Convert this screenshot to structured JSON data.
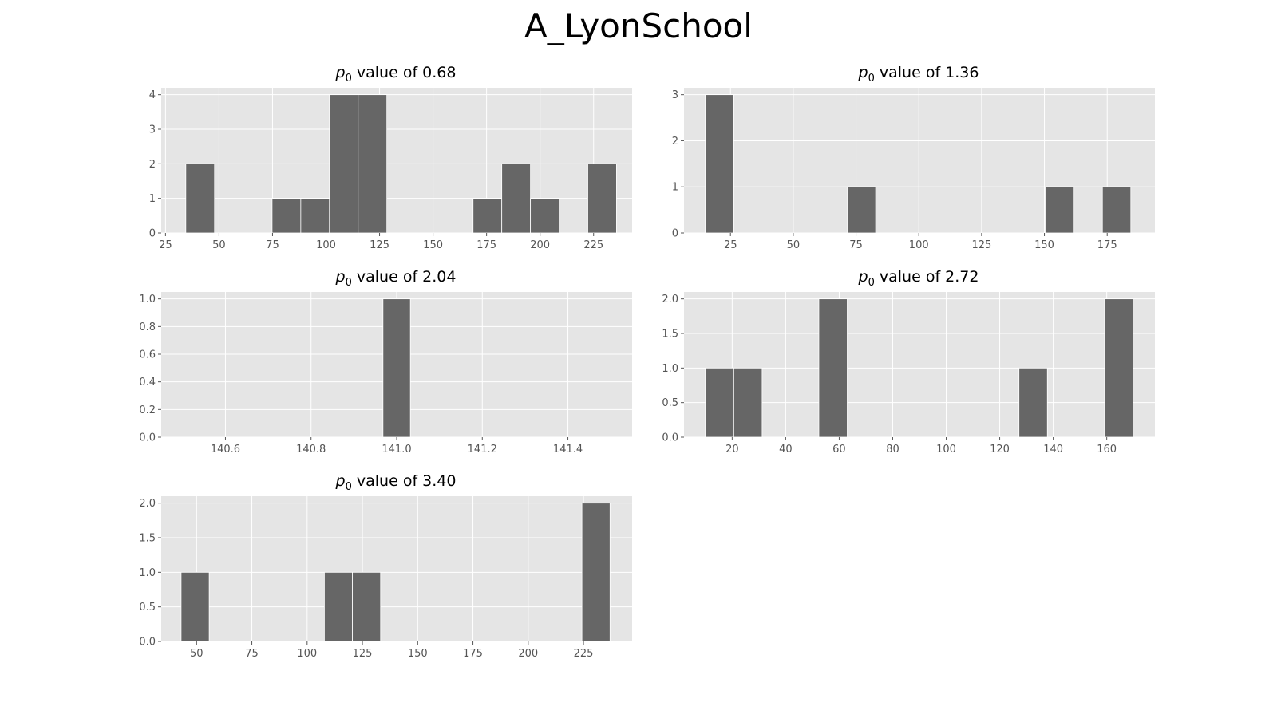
{
  "figure": {
    "title": "A_LyonSchool"
  },
  "colors": {
    "background": "#E5E5E5",
    "bar": "#666666",
    "grid": "#FFFFFF",
    "tick": "#555555"
  },
  "chart_data": [
    {
      "type": "bar",
      "title_prefix": "p",
      "title_sub": "0",
      "title_suffix": " value of 0.68",
      "xlim": [
        23,
        243
      ],
      "ylim": [
        0,
        4.2
      ],
      "xticks": [
        25,
        50,
        75,
        100,
        125,
        150,
        175,
        200,
        225
      ],
      "xtick_labels": [
        "25",
        "50",
        "75",
        "100",
        "125",
        "150",
        "175",
        "200",
        "225"
      ],
      "yticks": [
        0,
        1,
        2,
        3,
        4
      ],
      "ytick_labels": [
        "0",
        "1",
        "2",
        "3",
        "4"
      ],
      "bins": [
        {
          "x0": 34.5,
          "x1": 47.9,
          "count": 2
        },
        {
          "x0": 74.8,
          "x1": 88.2,
          "count": 1
        },
        {
          "x0": 88.2,
          "x1": 101.6,
          "count": 1
        },
        {
          "x0": 101.6,
          "x1": 115.0,
          "count": 4
        },
        {
          "x0": 115.0,
          "x1": 128.4,
          "count": 4
        },
        {
          "x0": 168.7,
          "x1": 182.1,
          "count": 1
        },
        {
          "x0": 182.1,
          "x1": 195.5,
          "count": 2
        },
        {
          "x0": 195.5,
          "x1": 208.9,
          "count": 1
        },
        {
          "x0": 222.3,
          "x1": 235.7,
          "count": 2
        }
      ]
    },
    {
      "type": "bar",
      "title_prefix": "p",
      "title_sub": "0",
      "title_suffix": " value of 1.36",
      "xlim": [
        6.5,
        194
      ],
      "ylim": [
        0,
        3.15
      ],
      "xticks": [
        25,
        50,
        75,
        100,
        125,
        150,
        175
      ],
      "xtick_labels": [
        "25",
        "50",
        "75",
        "100",
        "125",
        "150",
        "175"
      ],
      "yticks": [
        0,
        1,
        2,
        3
      ],
      "ytick_labels": [
        "0",
        "1",
        "2",
        "3"
      ],
      "bins": [
        {
          "x0": 15.0,
          "x1": 26.3,
          "count": 3
        },
        {
          "x0": 71.5,
          "x1": 82.8,
          "count": 1
        },
        {
          "x0": 150.5,
          "x1": 161.8,
          "count": 1
        },
        {
          "x0": 173.1,
          "x1": 184.4,
          "count": 1
        }
      ]
    },
    {
      "type": "bar",
      "title_prefix": "p",
      "title_sub": "0",
      "title_suffix": " value of 2.04",
      "xlim": [
        140.45,
        141.55
      ],
      "ylim": [
        0,
        1.05
      ],
      "xticks": [
        140.6,
        140.8,
        141.0,
        141.2,
        141.4
      ],
      "xtick_labels": [
        "140.6",
        "140.8",
        "141.0",
        "141.2",
        "141.4"
      ],
      "yticks": [
        0,
        0.2,
        0.4,
        0.6,
        0.8,
        1.0
      ],
      "ytick_labels": [
        "0.0",
        "0.2",
        "0.4",
        "0.6",
        "0.8",
        "1.0"
      ],
      "bins": [
        {
          "x0": 140.968,
          "x1": 141.032,
          "count": 1
        }
      ]
    },
    {
      "type": "bar",
      "title_prefix": "p",
      "title_sub": "0",
      "title_suffix": " value of 2.72",
      "xlim": [
        2,
        178
      ],
      "ylim": [
        0,
        2.1
      ],
      "xticks": [
        20,
        40,
        60,
        80,
        100,
        120,
        140,
        160
      ],
      "xtick_labels": [
        "20",
        "40",
        "60",
        "80",
        "100",
        "120",
        "140",
        "160"
      ],
      "yticks": [
        0,
        0.5,
        1.0,
        1.5,
        2.0
      ],
      "ytick_labels": [
        "0.0",
        "0.5",
        "1.0",
        "1.5",
        "2.0"
      ],
      "bins": [
        {
          "x0": 10.0,
          "x1": 20.6,
          "count": 1
        },
        {
          "x0": 20.6,
          "x1": 31.2,
          "count": 1
        },
        {
          "x0": 52.4,
          "x1": 63.0,
          "count": 2
        },
        {
          "x0": 127.2,
          "x1": 137.8,
          "count": 1
        },
        {
          "x0": 159.2,
          "x1": 169.8,
          "count": 2
        }
      ]
    },
    {
      "type": "bar",
      "title_prefix": "p",
      "title_sub": "0",
      "title_suffix": " value of 3.40",
      "xlim": [
        34,
        247
      ],
      "ylim": [
        0,
        2.1
      ],
      "xticks": [
        50,
        75,
        100,
        125,
        150,
        175,
        200,
        225
      ],
      "xtick_labels": [
        "50",
        "75",
        "100",
        "125",
        "150",
        "175",
        "200",
        "225"
      ],
      "yticks": [
        0,
        0.5,
        1.0,
        1.5,
        2.0
      ],
      "ytick_labels": [
        "0.0",
        "0.5",
        "1.0",
        "1.5",
        "2.0"
      ],
      "bins": [
        {
          "x0": 43.0,
          "x1": 55.7,
          "count": 1
        },
        {
          "x0": 107.8,
          "x1": 120.5,
          "count": 1
        },
        {
          "x0": 120.5,
          "x1": 133.2,
          "count": 1
        },
        {
          "x0": 224.3,
          "x1": 237.0,
          "count": 2
        }
      ]
    }
  ]
}
